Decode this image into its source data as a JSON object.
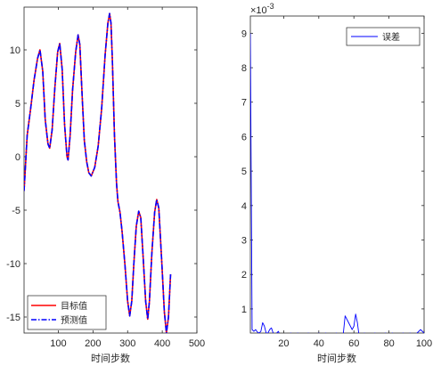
{
  "chart_data": [
    {
      "type": "line",
      "xlabel": "时间步数",
      "ylabel": "",
      "xlim": [
        1,
        500
      ],
      "ylim": [
        -16.5,
        14
      ],
      "xticks": [
        100,
        200,
        300,
        400,
        500
      ],
      "yticks": [
        -15,
        -10,
        -5,
        0,
        5,
        10
      ],
      "grid": false,
      "legend_position": "bottom-left",
      "series": [
        {
          "name": "目标值",
          "color": "#ff0000",
          "style": "solid",
          "points": [
            [
              1,
              -3.2
            ],
            [
              10,
              2.0
            ],
            [
              20,
              4.5
            ],
            [
              30,
              7.2
            ],
            [
              40,
              9.2
            ],
            [
              47,
              10.0
            ],
            [
              55,
              8.0
            ],
            [
              62,
              3.5
            ],
            [
              70,
              1.2
            ],
            [
              75,
              0.8
            ],
            [
              82,
              2.5
            ],
            [
              90,
              6.5
            ],
            [
              98,
              9.8
            ],
            [
              104,
              10.6
            ],
            [
              111,
              8.2
            ],
            [
              118,
              3.0
            ],
            [
              125,
              0.0
            ],
            [
              128,
              -0.3
            ],
            [
              134,
              2.0
            ],
            [
              141,
              6.2
            ],
            [
              150,
              9.8
            ],
            [
              157,
              11.4
            ],
            [
              162,
              10.5
            ],
            [
              168,
              6.2
            ],
            [
              175,
              1.5
            ],
            [
              182,
              -0.5
            ],
            [
              188,
              -1.5
            ],
            [
              195,
              -1.8
            ],
            [
              205,
              -1.0
            ],
            [
              215,
              1.0
            ],
            [
              225,
              4.5
            ],
            [
              235,
              9.5
            ],
            [
              243,
              12.5
            ],
            [
              248,
              13.4
            ],
            [
              252,
              12.5
            ],
            [
              256,
              9.0
            ],
            [
              262,
              2.0
            ],
            [
              268,
              -2.5
            ],
            [
              272,
              -4.2
            ],
            [
              278,
              -5.2
            ],
            [
              284,
              -7.0
            ],
            [
              292,
              -10.0
            ],
            [
              300,
              -13.5
            ],
            [
              306,
              -14.9
            ],
            [
              312,
              -13.5
            ],
            [
              318,
              -10.0
            ],
            [
              325,
              -6.5
            ],
            [
              332,
              -5.1
            ],
            [
              338,
              -5.7
            ],
            [
              345,
              -9.5
            ],
            [
              352,
              -13.5
            ],
            [
              358,
              -15.2
            ],
            [
              363,
              -13.5
            ],
            [
              370,
              -9.0
            ],
            [
              378,
              -5.2
            ],
            [
              384,
              -4.0
            ],
            [
              390,
              -4.8
            ],
            [
              398,
              -9.5
            ],
            [
              406,
              -14.5
            ],
            [
              412,
              -16.5
            ],
            [
              418,
              -15.0
            ],
            [
              424,
              -11.0
            ]
          ]
        },
        {
          "name": "预测值",
          "color": "#0000ff",
          "style": "dashdot",
          "points": [
            [
              1,
              -3.2
            ],
            [
              10,
              2.0
            ],
            [
              20,
              4.5
            ],
            [
              30,
              7.2
            ],
            [
              40,
              9.2
            ],
            [
              47,
              10.0
            ],
            [
              55,
              8.0
            ],
            [
              62,
              3.5
            ],
            [
              70,
              1.2
            ],
            [
              75,
              0.8
            ],
            [
              82,
              2.5
            ],
            [
              90,
              6.5
            ],
            [
              98,
              9.8
            ],
            [
              104,
              10.6
            ],
            [
              111,
              8.2
            ],
            [
              118,
              3.0
            ],
            [
              125,
              0.0
            ],
            [
              128,
              -0.3
            ],
            [
              134,
              2.0
            ],
            [
              141,
              6.2
            ],
            [
              150,
              9.8
            ],
            [
              157,
              11.4
            ],
            [
              162,
              10.5
            ],
            [
              168,
              6.2
            ],
            [
              175,
              1.5
            ],
            [
              182,
              -0.5
            ],
            [
              188,
              -1.5
            ],
            [
              195,
              -1.8
            ],
            [
              205,
              -1.0
            ],
            [
              215,
              1.0
            ],
            [
              225,
              4.5
            ],
            [
              235,
              9.5
            ],
            [
              243,
              12.5
            ],
            [
              248,
              13.4
            ],
            [
              252,
              12.5
            ],
            [
              256,
              9.0
            ],
            [
              262,
              2.0
            ],
            [
              268,
              -2.5
            ],
            [
              272,
              -4.2
            ],
            [
              278,
              -5.2
            ],
            [
              284,
              -7.0
            ],
            [
              292,
              -10.0
            ],
            [
              300,
              -13.5
            ],
            [
              306,
              -14.9
            ],
            [
              312,
              -13.5
            ],
            [
              318,
              -10.0
            ],
            [
              325,
              -6.5
            ],
            [
              332,
              -5.1
            ],
            [
              338,
              -5.7
            ],
            [
              345,
              -9.5
            ],
            [
              352,
              -13.5
            ],
            [
              358,
              -15.2
            ],
            [
              363,
              -13.5
            ],
            [
              370,
              -9.0
            ],
            [
              378,
              -5.2
            ],
            [
              384,
              -4.0
            ],
            [
              390,
              -4.8
            ],
            [
              398,
              -9.5
            ],
            [
              406,
              -14.5
            ],
            [
              412,
              -16.5
            ],
            [
              418,
              -15.0
            ],
            [
              424,
              -11.0
            ]
          ]
        }
      ]
    },
    {
      "type": "line",
      "xlabel": "时间步数",
      "ylabel": "",
      "xlim": [
        1,
        100
      ],
      "ylim": [
        0.0003,
        0.0095
      ],
      "xticks": [
        20,
        40,
        60,
        80,
        100
      ],
      "yticks": [
        1,
        2,
        3,
        4,
        5,
        6,
        7,
        8,
        9
      ],
      "y_exponent_label": "×10",
      "y_exponent": "-3",
      "grid": false,
      "legend_position": "top-right",
      "series": [
        {
          "name": "误差",
          "color": "#0000ff",
          "style": "solid",
          "points": [
            [
              1,
              0.009
            ],
            [
              2,
              0.0004
            ],
            [
              3,
              0.00035
            ],
            [
              4,
              0.0004
            ],
            [
              5,
              0.00033
            ],
            [
              6,
              0.0003
            ],
            [
              7,
              0.00035
            ],
            [
              8,
              0.0006
            ],
            [
              9,
              0.0005
            ],
            [
              10,
              0.0003
            ],
            [
              11,
              0.0003
            ],
            [
              12,
              0.0004
            ],
            [
              13,
              0.00045
            ],
            [
              14,
              0.0003
            ],
            [
              15,
              0.0002
            ],
            [
              16,
              0.0003
            ],
            [
              17,
              0.00035
            ],
            [
              18,
              0.0002
            ],
            [
              19,
              0.0001
            ],
            [
              20,
              0.0002
            ],
            [
              22,
              0.0001
            ],
            [
              24,
              0.0003
            ],
            [
              26,
              0.0002
            ],
            [
              28,
              0.0003
            ],
            [
              30,
              0.0002
            ],
            [
              32,
              0.0001
            ],
            [
              34,
              0.0003
            ],
            [
              36,
              0.0002
            ],
            [
              38,
              0.0001
            ],
            [
              40,
              0.0003
            ],
            [
              42,
              0.0002
            ],
            [
              44,
              0.0003
            ],
            [
              46,
              0.0001
            ],
            [
              48,
              0.0002
            ],
            [
              50,
              0.0003
            ],
            [
              52,
              0.0001
            ],
            [
              54,
              0.0003
            ],
            [
              55,
              0.0008
            ],
            [
              57,
              0.0006
            ],
            [
              59,
              0.0004
            ],
            [
              60,
              0.0005
            ],
            [
              61,
              0.00085
            ],
            [
              62,
              0.0006
            ],
            [
              63,
              0.0002
            ],
            [
              64,
              0.0001
            ],
            [
              66,
              0.0003
            ],
            [
              68,
              0.0002
            ],
            [
              70,
              0.0002
            ],
            [
              72,
              0.0003
            ],
            [
              74,
              0.0001
            ],
            [
              76,
              0.0002
            ],
            [
              78,
              0.0003
            ],
            [
              80,
              0.0002
            ],
            [
              82,
              0.0003
            ],
            [
              84,
              0.0001
            ],
            [
              86,
              0.0002
            ],
            [
              88,
              0.0003
            ],
            [
              90,
              0.0002
            ],
            [
              92,
              0.0003
            ],
            [
              94,
              0.0002
            ],
            [
              96,
              0.0003
            ],
            [
              98,
              0.0004
            ],
            [
              100,
              0.0003
            ]
          ]
        }
      ]
    }
  ]
}
